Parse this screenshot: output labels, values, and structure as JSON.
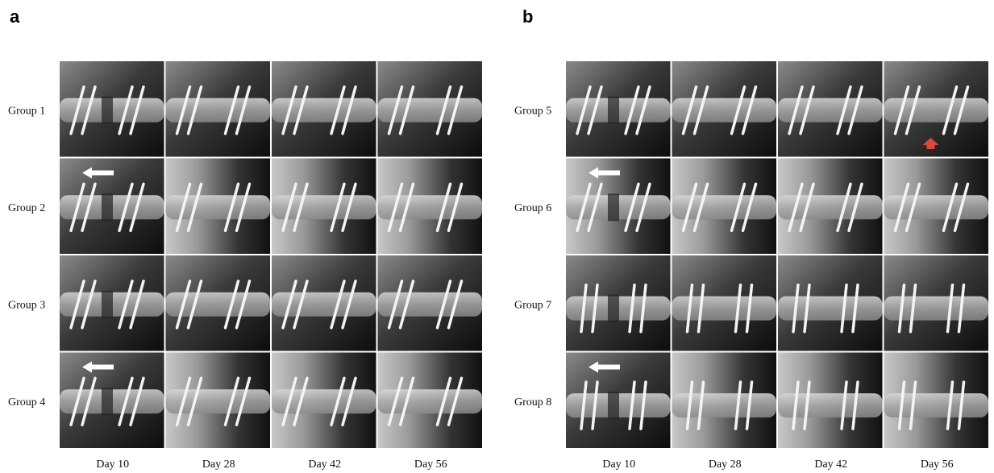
{
  "panels": [
    {
      "label": "a",
      "rows": [
        "Group 1",
        "Group 2",
        "Group 3",
        "Group 4"
      ],
      "columns": [
        "Day 10",
        "Day 28",
        "Day 42",
        "Day 56"
      ]
    },
    {
      "label": "b",
      "rows": [
        "Group 5",
        "Group 6",
        "Group 7",
        "Group 8"
      ],
      "columns": [
        "Day 10",
        "Day 28",
        "Day 42",
        "Day 56"
      ]
    }
  ]
}
